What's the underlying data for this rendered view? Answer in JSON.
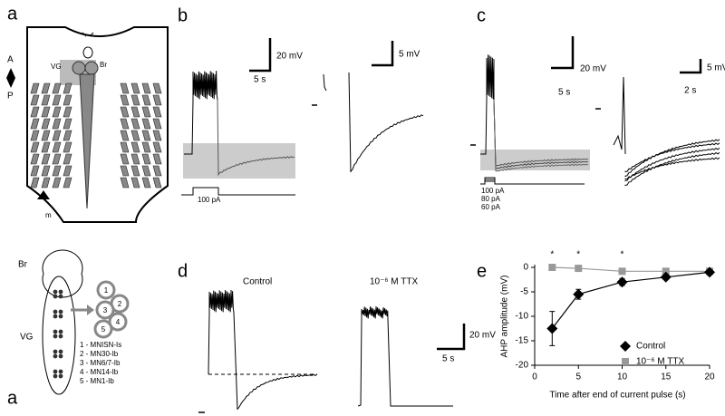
{
  "panel_labels": [
    "a",
    "b",
    "c",
    "d",
    "e"
  ],
  "panel_a": {
    "axis_labels": [
      "A",
      "P"
    ],
    "brain": "Br",
    "ganglion": "VG",
    "muscle": "m",
    "lower_brain": "Br",
    "lower_ganglion": "VG",
    "neuron_numbers": [
      "1",
      "2",
      "3",
      "4",
      "5"
    ],
    "neuron_key": [
      "1 - MNISN-Is",
      "2 - MN30-Ib",
      "3 - MN6/7-Ib",
      "4 - MN14-Ib",
      "5 - MN1-Ib"
    ]
  },
  "panel_b": {
    "scale_voltage": "20 mV",
    "scale_time": "5 s",
    "stimulus": "100 pA",
    "inset_scale_voltage": "5 mV"
  },
  "panel_c": {
    "scale_voltage": "20 mV",
    "scale_time": "5 s",
    "stimuli": [
      "100 pA",
      "80 pA",
      "60 pA"
    ],
    "inset_scale_voltage": "5 mV",
    "inset_scale_time": "2 s"
  },
  "panel_d": {
    "conditions": [
      "Control",
      "10⁻⁶ M TTX"
    ],
    "scale_voltage": "20 mV",
    "scale_time": "5 s"
  },
  "chart_data": {
    "type": "line",
    "x_label": "Time after end of current pulse (s)",
    "y_label": "AHP amplitude (mV)",
    "x": [
      2,
      5,
      10,
      15,
      20
    ],
    "series": [
      {
        "name": "Control",
        "color": "#000000",
        "marker": "diamond",
        "values": [
          -12.5,
          -5.5,
          -3,
          -2,
          -1
        ],
        "errors": [
          3.5,
          1,
          0.7,
          0.5,
          0.3
        ]
      },
      {
        "name": "10⁻⁶ M TTX",
        "color": "#999999",
        "marker": "square",
        "values": [
          0,
          -0.2,
          -0.8,
          -0.8,
          -0.8
        ]
      }
    ],
    "xlim": [
      0,
      20
    ],
    "ylim": [
      -20,
      0
    ],
    "xticks": [
      0,
      5,
      10,
      15,
      20
    ],
    "yticks": [
      -20,
      -15,
      -10,
      -5,
      0
    ],
    "annotations": [
      {
        "x": 2,
        "text": "*"
      },
      {
        "x": 5,
        "text": "*"
      },
      {
        "x": 10,
        "text": "*"
      }
    ],
    "legend": "lower right"
  }
}
